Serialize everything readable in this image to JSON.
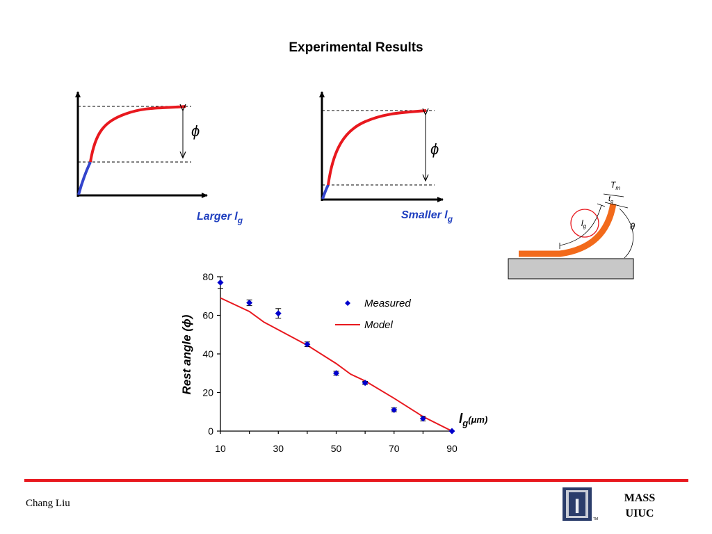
{
  "slide": {
    "title": "Experimental Results",
    "author": "Chang Liu",
    "org_line1": "MASS",
    "org_line2": "UIUC",
    "logo_letter": "I",
    "logo_tm": "TM",
    "accent_color": "#e8181e"
  },
  "sketch_left": {
    "phi": "ϕ",
    "caption_main": "Larger l",
    "caption_sub": "g"
  },
  "sketch_right": {
    "phi": "ϕ",
    "caption_main": "Smaller l",
    "caption_sub": "g"
  },
  "diagram": {
    "T_main": "T",
    "T_sub": "m",
    "t_main": "t",
    "t_sub": "g",
    "l_main": "l",
    "l_sub": "g",
    "theta": "θ",
    "beam_color": "#f26a1b",
    "substrate_color": "#c8c8c8"
  },
  "chart_data": {
    "type": "scatter",
    "xlabel_main": "l",
    "xlabel_sub": "g",
    "xlabel_unit": "(μm)",
    "ylabel": "Rest angle (ϕ)",
    "xlim": [
      10,
      90
    ],
    "ylim": [
      0,
      80
    ],
    "x_ticks": [
      10,
      30,
      50,
      70,
      90
    ],
    "y_ticks": [
      0,
      20,
      40,
      60,
      80
    ],
    "legend_position": "top-right",
    "series": [
      {
        "name": "Measured",
        "kind": "points_with_error",
        "color": "#0000cc",
        "points": [
          {
            "x": 10,
            "y": 77,
            "err": 3
          },
          {
            "x": 20,
            "y": 66.5,
            "err": 1.5
          },
          {
            "x": 30,
            "y": 61,
            "err": 2.5
          },
          {
            "x": 40,
            "y": 45,
            "err": 1.2
          },
          {
            "x": 50,
            "y": 30,
            "err": 1
          },
          {
            "x": 60,
            "y": 25,
            "err": 0.8
          },
          {
            "x": 70,
            "y": 11,
            "err": 1
          },
          {
            "x": 80,
            "y": 6.5,
            "err": 1.2
          },
          {
            "x": 90,
            "y": 0,
            "err": 0
          }
        ]
      },
      {
        "name": "Model",
        "kind": "line",
        "color": "#e8181e",
        "points": [
          {
            "x": 10,
            "y": 69
          },
          {
            "x": 20,
            "y": 62
          },
          {
            "x": 25,
            "y": 56.5
          },
          {
            "x": 40,
            "y": 44.5
          },
          {
            "x": 50,
            "y": 35
          },
          {
            "x": 55,
            "y": 29.5
          },
          {
            "x": 60,
            "y": 26
          },
          {
            "x": 70,
            "y": 17
          },
          {
            "x": 80,
            "y": 7.5
          },
          {
            "x": 90,
            "y": 0
          }
        ]
      }
    ]
  }
}
